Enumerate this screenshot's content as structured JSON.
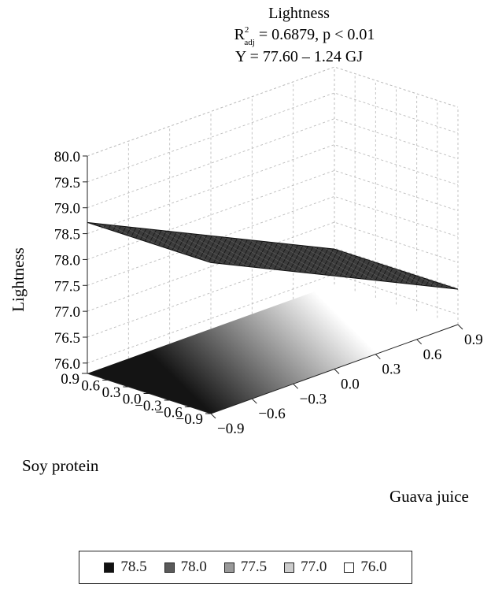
{
  "chart_data": {
    "type": "surface",
    "title": "Lightness",
    "subtitle_r2_symbol": "R",
    "subtitle_r2_sup": "2",
    "subtitle_r2_sub": "adj",
    "subtitle_r2_rest": " = 0.6879, p < 0.01",
    "equation": "Y = 77.60 – 1.24 GJ",
    "xlabel": "Guava juice",
    "ylabel": "Soy protein",
    "zlabel": "Lightness",
    "x_ticks": [
      "−0.9",
      "−0.6",
      "−0.3",
      "0.0",
      "0.3",
      "0.6",
      "0.9"
    ],
    "y_ticks": [
      "0.9",
      "0.6",
      "0.3",
      "0.0",
      "−0.3",
      "−0.6",
      "−0.9"
    ],
    "z_ticks": [
      "80.0",
      "79.5",
      "79.0",
      "78.5",
      "78.0",
      "77.5",
      "77.0",
      "76.5",
      "76.0"
    ],
    "xlim": [
      -0.9,
      0.9
    ],
    "ylim": [
      -0.9,
      0.9
    ],
    "zlim": [
      75.8,
      80.0
    ],
    "model": {
      "intercept": 77.6,
      "slope_guava_juice": -1.24
    },
    "grid": true,
    "legend_position": "bottom",
    "legend": [
      {
        "label": "78.5",
        "color": "#111111"
      },
      {
        "label": "78.0",
        "color": "#5a5a5a"
      },
      {
        "label": "77.5",
        "color": "#999999"
      },
      {
        "label": "77.0",
        "color": "#cccccc"
      },
      {
        "label": "76.0",
        "color": "#ffffff"
      }
    ]
  }
}
